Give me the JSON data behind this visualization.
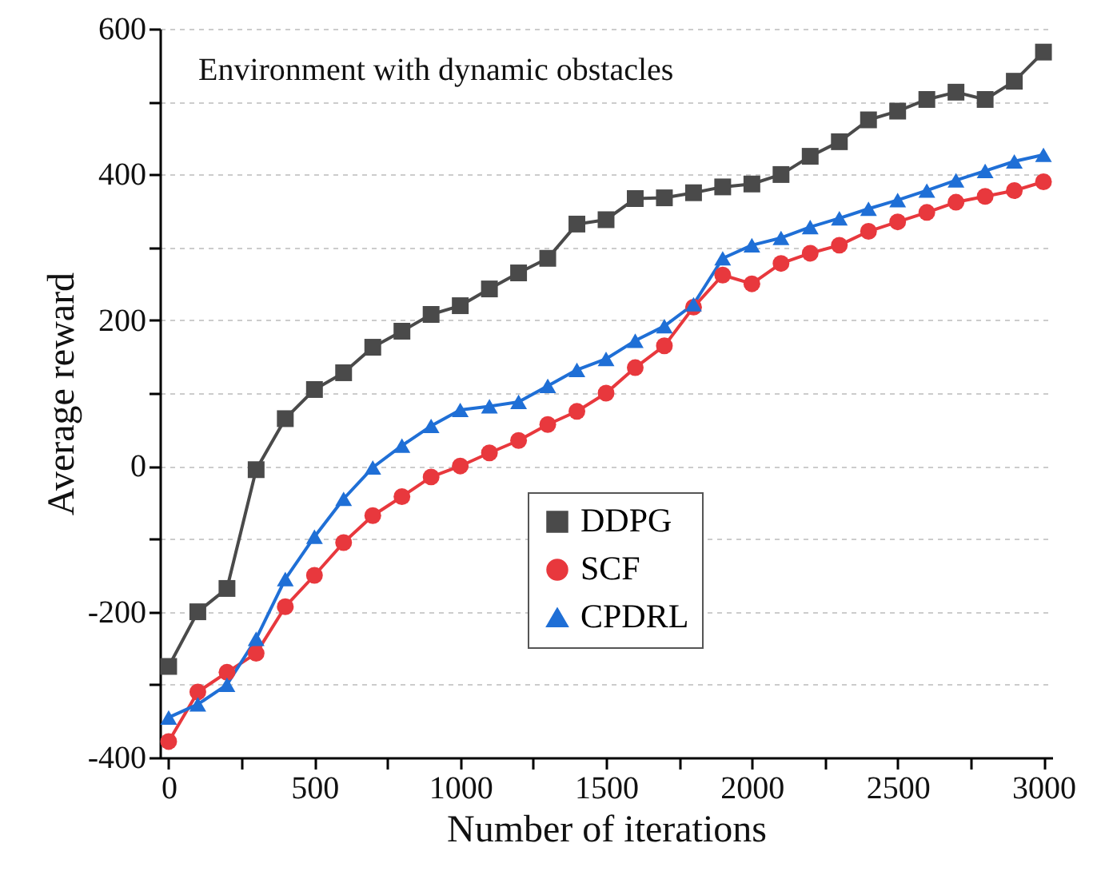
{
  "chart_data": {
    "type": "line",
    "title": "Environment with dynamic obstacles",
    "xlabel": "Number of iterations",
    "ylabel": "Average reward",
    "x": [
      0,
      100,
      200,
      300,
      400,
      500,
      600,
      700,
      800,
      900,
      1000,
      1100,
      1200,
      1300,
      1400,
      1500,
      1600,
      1700,
      1800,
      1900,
      2000,
      2100,
      2200,
      2300,
      2400,
      2500,
      2600,
      2700,
      2800,
      2900,
      3000
    ],
    "series": [
      {
        "name": "DDPG",
        "color": "#4a4a4a",
        "marker": "square",
        "values": [
          -275,
          -200,
          -168,
          -5,
          65,
          105,
          128,
          163,
          185,
          208,
          220,
          243,
          265,
          285,
          332,
          338,
          367,
          368,
          375,
          383,
          387,
          400,
          425,
          445,
          475,
          487,
          503,
          513,
          503,
          528,
          568
        ]
      },
      {
        "name": "SCF",
        "color": "#e8383d",
        "marker": "circle",
        "values": [
          -378,
          -310,
          -283,
          -257,
          -193,
          -150,
          -105,
          -68,
          -42,
          -15,
          0,
          18,
          35,
          57,
          75,
          100,
          135,
          165,
          218,
          262,
          250,
          278,
          292,
          303,
          322,
          335,
          348,
          362,
          370,
          378,
          390
        ]
      },
      {
        "name": "CPDRL",
        "color": "#1f6fd6",
        "marker": "triangle",
        "values": [
          -345,
          -327,
          -300,
          -237,
          -155,
          -97,
          -45,
          -2,
          28,
          55,
          77,
          82,
          88,
          110,
          132,
          147,
          172,
          192,
          222,
          285,
          303,
          313,
          328,
          340,
          353,
          365,
          378,
          392,
          405,
          418,
          427
        ]
      }
    ],
    "xlim": [
      -30,
      3030
    ],
    "xticks": [
      0,
      {
        "value": 250,
        "label": null
      },
      500,
      {
        "value": 750,
        "label": null
      },
      1000,
      {
        "value": 1250,
        "label": null
      },
      1500,
      {
        "value": 1750,
        "label": null
      },
      2000,
      {
        "value": 2250,
        "label": null
      },
      2500,
      {
        "value": 2750,
        "label": null
      },
      3000
    ],
    "ylim": [
      -400,
      600
    ],
    "yticks": [
      -400,
      {
        "value": -300,
        "label": null
      },
      -200,
      {
        "value": -100,
        "label": null
      },
      0,
      {
        "value": 100,
        "label": null
      },
      200,
      {
        "value": 300,
        "label": null
      },
      400,
      {
        "value": 500,
        "label": null
      },
      600
    ],
    "grid": "y",
    "legend": "center",
    "line_style": "solid"
  }
}
